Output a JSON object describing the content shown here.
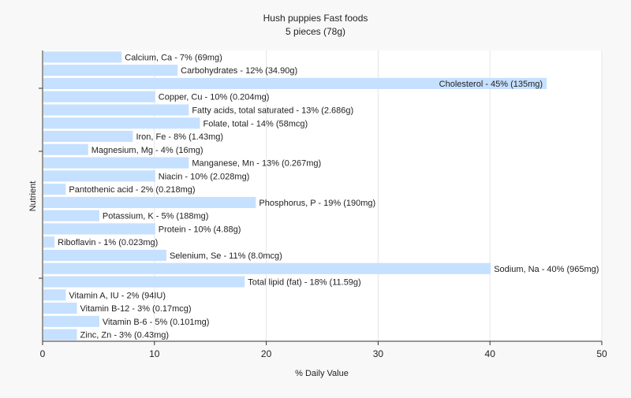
{
  "chart_data": {
    "type": "bar",
    "orientation": "horizontal",
    "title": "Hush puppies Fast foods",
    "subtitle": "5 pieces (78g)",
    "xlabel": "% Daily Value",
    "ylabel": "Nutrient",
    "xlim": [
      0,
      50
    ],
    "xticks": [
      0,
      10,
      20,
      30,
      40,
      50
    ],
    "grid": true,
    "bar_color": "#c6e0ff",
    "categories": [
      "Calcium, Ca",
      "Carbohydrates",
      "Cholesterol",
      "Copper, Cu",
      "Fatty acids, total saturated",
      "Folate, total",
      "Iron, Fe",
      "Magnesium, Mg",
      "Manganese, Mn",
      "Niacin",
      "Pantothenic acid",
      "Phosphorus, P",
      "Potassium, K",
      "Protein",
      "Riboflavin",
      "Selenium, Se",
      "Sodium, Na",
      "Total lipid (fat)",
      "Vitamin A, IU",
      "Vitamin B-12",
      "Vitamin B-6",
      "Zinc, Zn"
    ],
    "values": [
      7,
      12,
      45,
      10,
      13,
      14,
      8,
      4,
      13,
      10,
      2,
      19,
      5,
      10,
      1,
      11,
      40,
      18,
      2,
      3,
      5,
      3
    ],
    "labels": [
      "Calcium, Ca - 7% (69mg)",
      "Carbohydrates - 12% (34.90g)",
      "Cholesterol - 45% (135mg)",
      "Copper, Cu - 10% (0.204mg)",
      "Fatty acids, total saturated - 13% (2.686g)",
      "Folate, total - 14% (58mcg)",
      "Iron, Fe - 8% (1.43mg)",
      "Magnesium, Mg - 4% (16mg)",
      "Manganese, Mn - 13% (0.267mg)",
      "Niacin - 10% (2.028mg)",
      "Pantothenic acid - 2% (0.218mg)",
      "Phosphorus, P - 19% (190mg)",
      "Potassium, K - 5% (188mg)",
      "Protein - 10% (4.88g)",
      "Riboflavin - 1% (0.023mg)",
      "Selenium, Se - 11% (8.0mcg)",
      "Sodium, Na - 40% (965mg)",
      "Total lipid (fat) - 18% (11.59g)",
      "Vitamin A, IU - 2% (94IU)",
      "Vitamin B-12 - 3% (0.17mcg)",
      "Vitamin B-6 - 5% (0.101mg)",
      "Zinc, Zn - 3% (0.43mg)"
    ]
  }
}
